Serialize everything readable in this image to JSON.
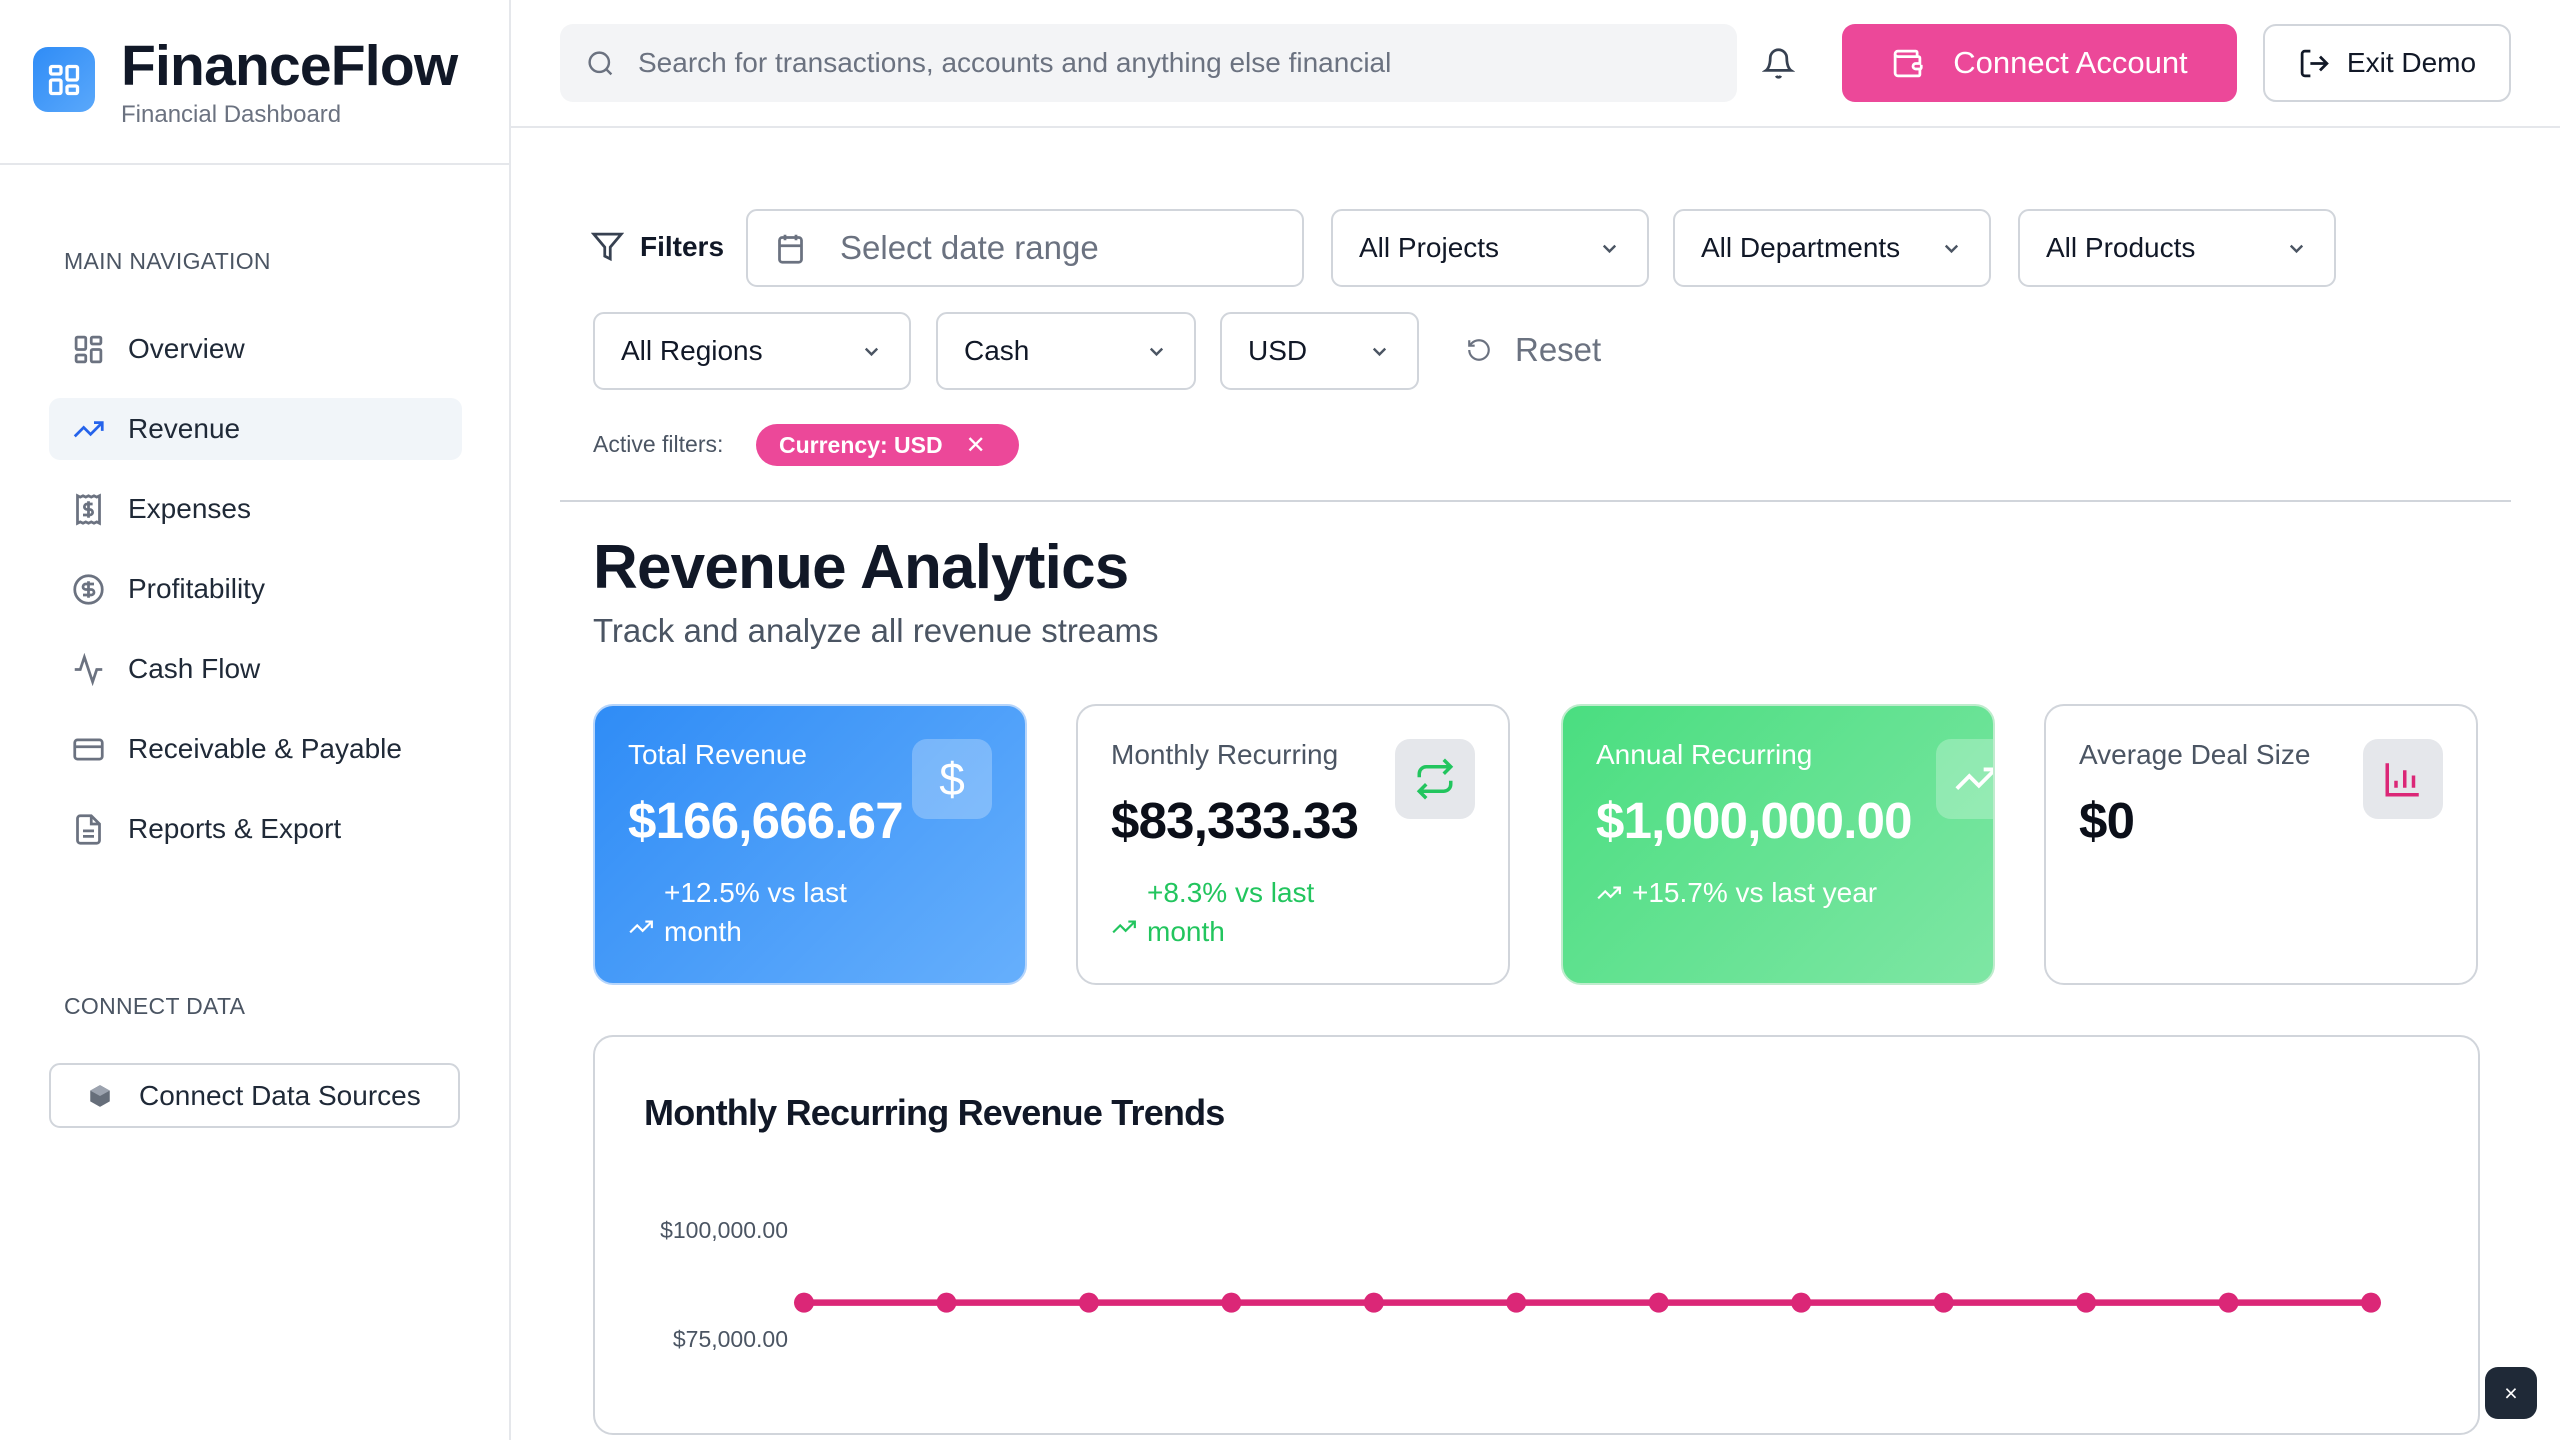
{
  "brand": {
    "name": "FinanceFlow",
    "subtitle": "Financial Dashboard"
  },
  "sidebar": {
    "main_label": "MAIN NAVIGATION",
    "items": [
      {
        "label": "Overview",
        "icon": "layout-grid-icon"
      },
      {
        "label": "Revenue",
        "icon": "trending-up-icon",
        "active": true
      },
      {
        "label": "Expenses",
        "icon": "receipt-icon"
      },
      {
        "label": "Profitability",
        "icon": "dollar-circle-icon"
      },
      {
        "label": "Cash Flow",
        "icon": "activity-icon"
      },
      {
        "label": "Receivable & Payable",
        "icon": "credit-card-icon"
      },
      {
        "label": "Reports & Export",
        "icon": "file-text-icon"
      }
    ],
    "connect_label": "CONNECT DATA",
    "connect_button": "Connect Data Sources"
  },
  "header": {
    "search_placeholder": "Search for transactions, accounts and anything else financial",
    "connect_account": "Connect Account",
    "exit_demo": "Exit Demo",
    "accent": "#ec4899"
  },
  "filters": {
    "label": "Filters",
    "date_placeholder": "Select date range",
    "projects": "All Projects",
    "departments": "All Departments",
    "products": "All Products",
    "regions": "All Regions",
    "basis": "Cash",
    "currency": "USD",
    "reset": "Reset",
    "active_label": "Active filters:",
    "active_chip": "Currency: USD"
  },
  "page": {
    "title": "Revenue Analytics",
    "subtitle": "Track and analyze all revenue streams"
  },
  "cards": [
    {
      "label": "Total Revenue",
      "value": "$166,666.67",
      "change": "+12.5% vs last month",
      "icon": "dollar-icon"
    },
    {
      "label": "Monthly Recurring",
      "value": "$83,333.33",
      "change": "+8.3% vs last month",
      "icon": "repeat-icon"
    },
    {
      "label": "Annual Recurring",
      "value": "$1,000,000.00",
      "change": "+15.7% vs last year",
      "icon": "trending-up-icon"
    },
    {
      "label": "Average Deal Size",
      "value": "$0",
      "icon": "bar-chart-icon"
    }
  ],
  "chart_data": {
    "type": "line",
    "title": "Monthly Recurring Revenue Trends",
    "y_ticks": [
      "$100,000.00",
      "$75,000.00"
    ],
    "y_tick_values": [
      100000,
      75000
    ],
    "series": [
      {
        "values": [
          83333.33,
          83333.33,
          83333.33,
          83333.33,
          83333.33,
          83333.33,
          83333.33,
          83333.33,
          83333.33,
          83333.33,
          83333.33,
          83333.33
        ],
        "color": "#db2777"
      }
    ]
  },
  "toast": {
    "close": "×"
  }
}
